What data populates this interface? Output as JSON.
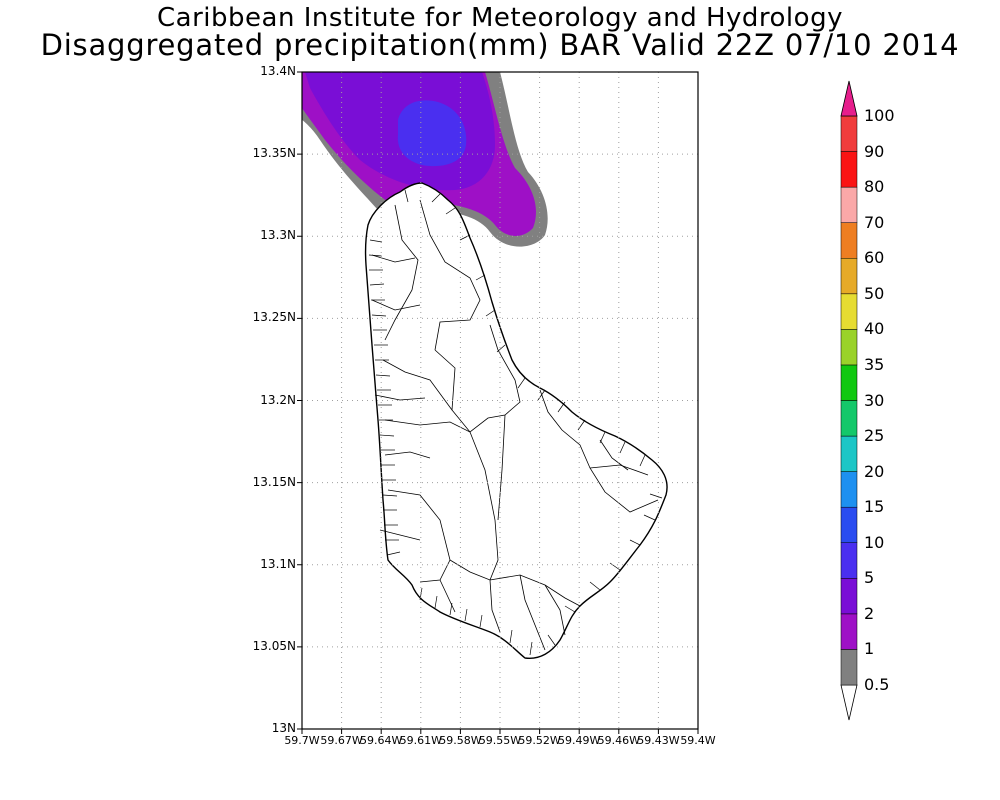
{
  "header": {
    "title_line1": "Caribbean Institute for Meteorology and Hydrology",
    "title_line2": "Disaggregated precipitation(mm) BAR Valid 22Z 07/10 2014"
  },
  "map": {
    "region": "Barbados",
    "lat_range": [
      13.0,
      13.4
    ],
    "lon_range": [
      -59.7,
      -59.4
    ],
    "y_ticks": [
      {
        "value": 13.4,
        "label": "13.4N"
      },
      {
        "value": 13.35,
        "label": "13.35N"
      },
      {
        "value": 13.3,
        "label": "13.3N"
      },
      {
        "value": 13.25,
        "label": "13.25N"
      },
      {
        "value": 13.2,
        "label": "13.2N"
      },
      {
        "value": 13.15,
        "label": "13.15N"
      },
      {
        "value": 13.1,
        "label": "13.1N"
      },
      {
        "value": 13.05,
        "label": "13.05N"
      },
      {
        "value": 13.0,
        "label": "13N"
      }
    ],
    "x_ticks": [
      {
        "value": -59.7,
        "label": "59.7W"
      },
      {
        "value": -59.67,
        "label": "59.67W"
      },
      {
        "value": -59.64,
        "label": "59.64W"
      },
      {
        "value": -59.61,
        "label": "59.61W"
      },
      {
        "value": -59.58,
        "label": "59.58W"
      },
      {
        "value": -59.55,
        "label": "59.55W"
      },
      {
        "value": -59.52,
        "label": "59.52W"
      },
      {
        "value": -59.49,
        "label": "59.49W"
      },
      {
        "value": -59.46,
        "label": "59.46W"
      },
      {
        "value": -59.43,
        "label": "59.43W"
      },
      {
        "value": -59.4,
        "label": "59.4W"
      }
    ],
    "grid": true
  },
  "colorbar": {
    "levels": [
      {
        "label": "0.5",
        "color": "#ffffff"
      },
      {
        "label": "1",
        "color": "#808080"
      },
      {
        "label": "2",
        "color": "#9e10c6"
      },
      {
        "label": "5",
        "color": "#7a0ed6"
      },
      {
        "label": "10",
        "color": "#4a2ff0"
      },
      {
        "label": "15",
        "color": "#2a4cf0"
      },
      {
        "label": "20",
        "color": "#1e90f0"
      },
      {
        "label": "25",
        "color": "#1cc6c6"
      },
      {
        "label": "30",
        "color": "#14c86a"
      },
      {
        "label": "35",
        "color": "#10c810"
      },
      {
        "label": "40",
        "color": "#9ad22a"
      },
      {
        "label": "50",
        "color": "#e6dc32"
      },
      {
        "label": "60",
        "color": "#e6aa28"
      },
      {
        "label": "70",
        "color": "#ee7e22"
      },
      {
        "label": "80",
        "color": "#faa8a8"
      },
      {
        "label": "90",
        "color": "#fa1414"
      },
      {
        "label": "100",
        "color": "#f03c3c"
      }
    ],
    "top_color": "#e61e8c"
  }
}
